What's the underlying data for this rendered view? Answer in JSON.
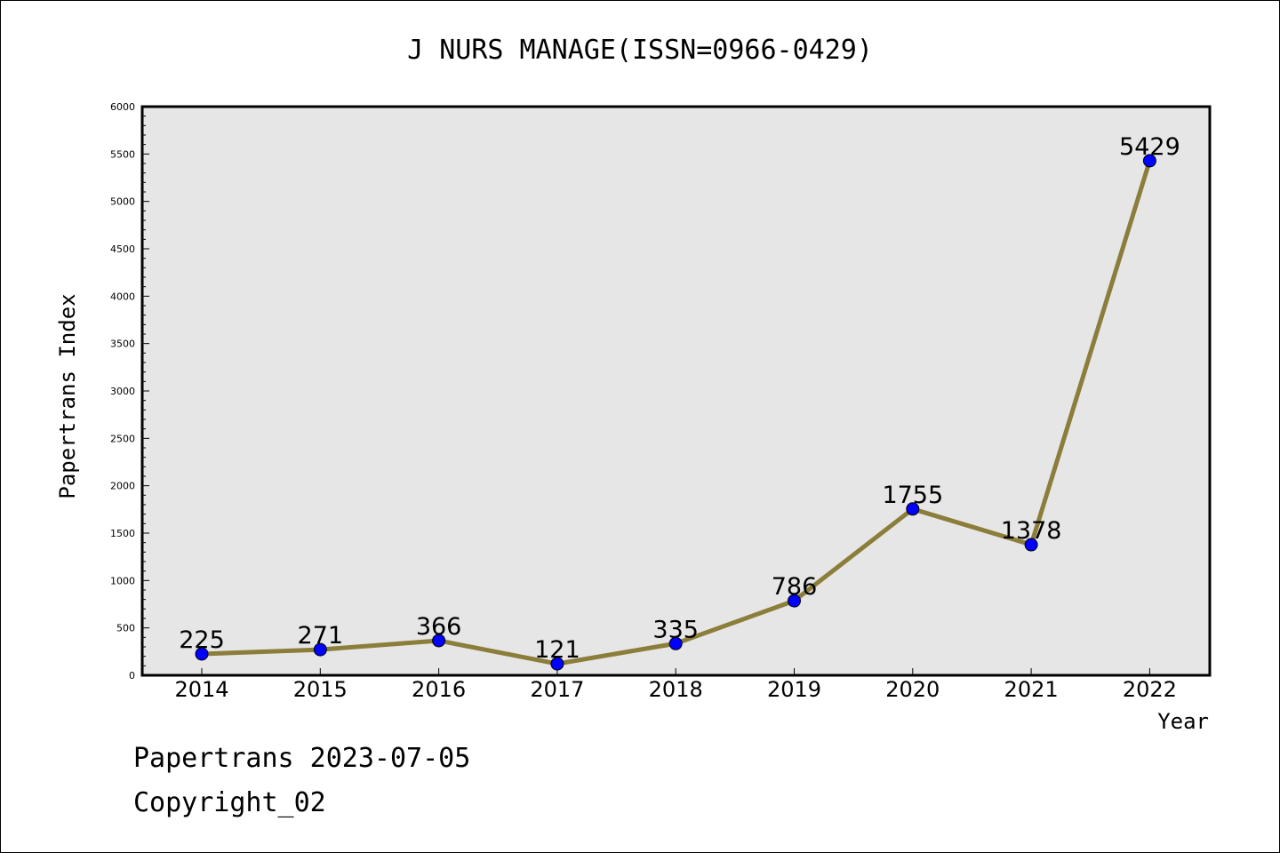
{
  "chart_data": {
    "type": "line",
    "title": "J NURS MANAGE(ISSN=0966-0429)",
    "xlabel": "Year",
    "ylabel": "Papertrans Index",
    "categories": [
      "2014",
      "2015",
      "2016",
      "2017",
      "2018",
      "2019",
      "2020",
      "2021",
      "2022"
    ],
    "series": [
      {
        "values": [
          225,
          271,
          366,
          121,
          335,
          786,
          1755,
          1378,
          5429
        ]
      }
    ],
    "data_labels": [
      "225",
      "271",
      "366",
      "121",
      "335",
      "786",
      "1755",
      "1378",
      "5429"
    ],
    "ylim": [
      0,
      6000
    ],
    "yticks": [
      "0",
      "500",
      "1000",
      "1500",
      "2000",
      "2500",
      "3000",
      "3500",
      "4000",
      "4500",
      "5000",
      "5500",
      "6000"
    ],
    "grid": false,
    "plot_background": "#e6e6e6",
    "line_color": "#8b7d3a",
    "marker_color": "#0000ff"
  },
  "footer": {
    "date_line": "Papertrans 2023-07-05",
    "copyright_line": "Copyright_02"
  }
}
